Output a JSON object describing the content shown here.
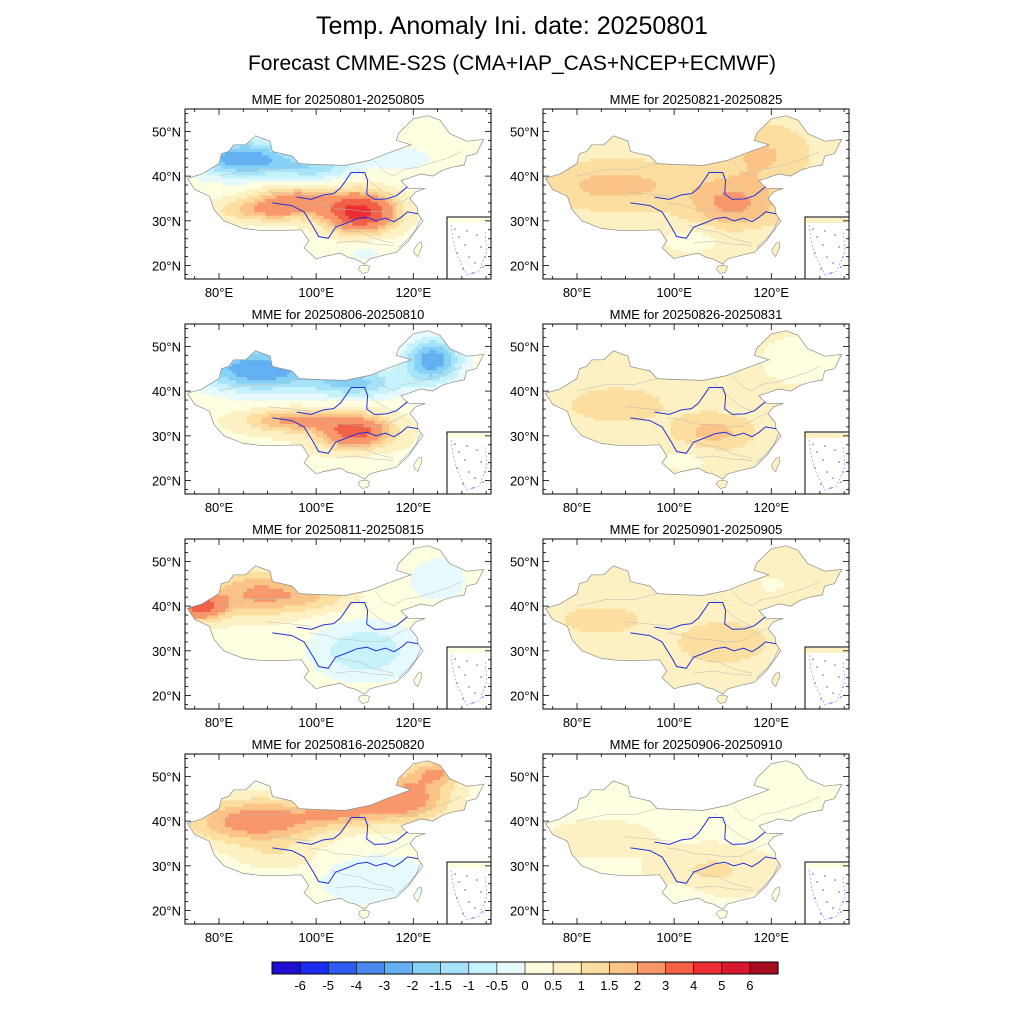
{
  "figure": {
    "title": "Temp. Anomaly Ini. date: 20250801",
    "subtitle": "Forecast CMME-S2S (CMA+IAP_CAS+NCEP+ECMWF)"
  },
  "axes": {
    "lat_ticks": [
      "20°N",
      "30°N",
      "40°N",
      "50°N"
    ],
    "lon_ticks": [
      "80°E",
      "100°E",
      "120°E"
    ]
  },
  "panels": [
    {
      "title": "MME for 20250801-20250805",
      "pattern": "hot_center_cold_nw"
    },
    {
      "title": "MME for 20250806-20250810",
      "pattern": "cold_north_warm_south"
    },
    {
      "title": "MME for 20250811-20250815",
      "pattern": "warm_west_cool_east"
    },
    {
      "title": "MME for 20250816-20250820",
      "pattern": "warm_north_band"
    },
    {
      "title": "MME for 20250821-20250825",
      "pattern": "warm_broad"
    },
    {
      "title": "MME for 20250826-20250831",
      "pattern": "mild_warm"
    },
    {
      "title": "MME for 20250901-20250905",
      "pattern": "mild_warm_flat"
    },
    {
      "title": "MME for 20250906-20250910",
      "pattern": "weak_warm"
    }
  ],
  "colorbar": {
    "labels": [
      "-6",
      "-5",
      "-4",
      "-3",
      "-2",
      "-1.5",
      "-1",
      "-0.5",
      "0",
      "0.5",
      "1",
      "1.5",
      "2",
      "3",
      "4",
      "5",
      "6"
    ],
    "colors": [
      "#1f0fd6",
      "#1b2bf0",
      "#2f5cf0",
      "#4a8aee",
      "#63b0f2",
      "#86d0f6",
      "#a6e3f8",
      "#c6f3fb",
      "#e6fafd",
      "#fefee0",
      "#fdf0c2",
      "#fcdfa0",
      "#fbc487",
      "#f8976a",
      "#f26048",
      "#ec2e33",
      "#d7182e",
      "#a80a20"
    ]
  },
  "chart_data": {
    "type": "heatmap",
    "title": "Temp. Anomaly Ini. date: 20250801",
    "subtitle": "Forecast CMME-S2S (CMA+IAP_CAS+NCEP+ECMWF)",
    "levels": [
      -6,
      -5,
      -4,
      -3,
      -2,
      -1.5,
      -1,
      -0.5,
      0,
      0.5,
      1,
      1.5,
      2,
      3,
      4,
      5,
      6
    ],
    "lon_range": [
      73,
      136
    ],
    "lat_range": [
      17,
      55
    ],
    "panels": [
      "MME for 20250801-20250805",
      "MME for 20250806-20250810",
      "MME for 20250811-20250815",
      "MME for 20250816-20250820",
      "MME for 20250821-20250825",
      "MME for 20250826-20250831",
      "MME for 20250901-20250905",
      "MME for 20250906-20250910"
    ]
  }
}
